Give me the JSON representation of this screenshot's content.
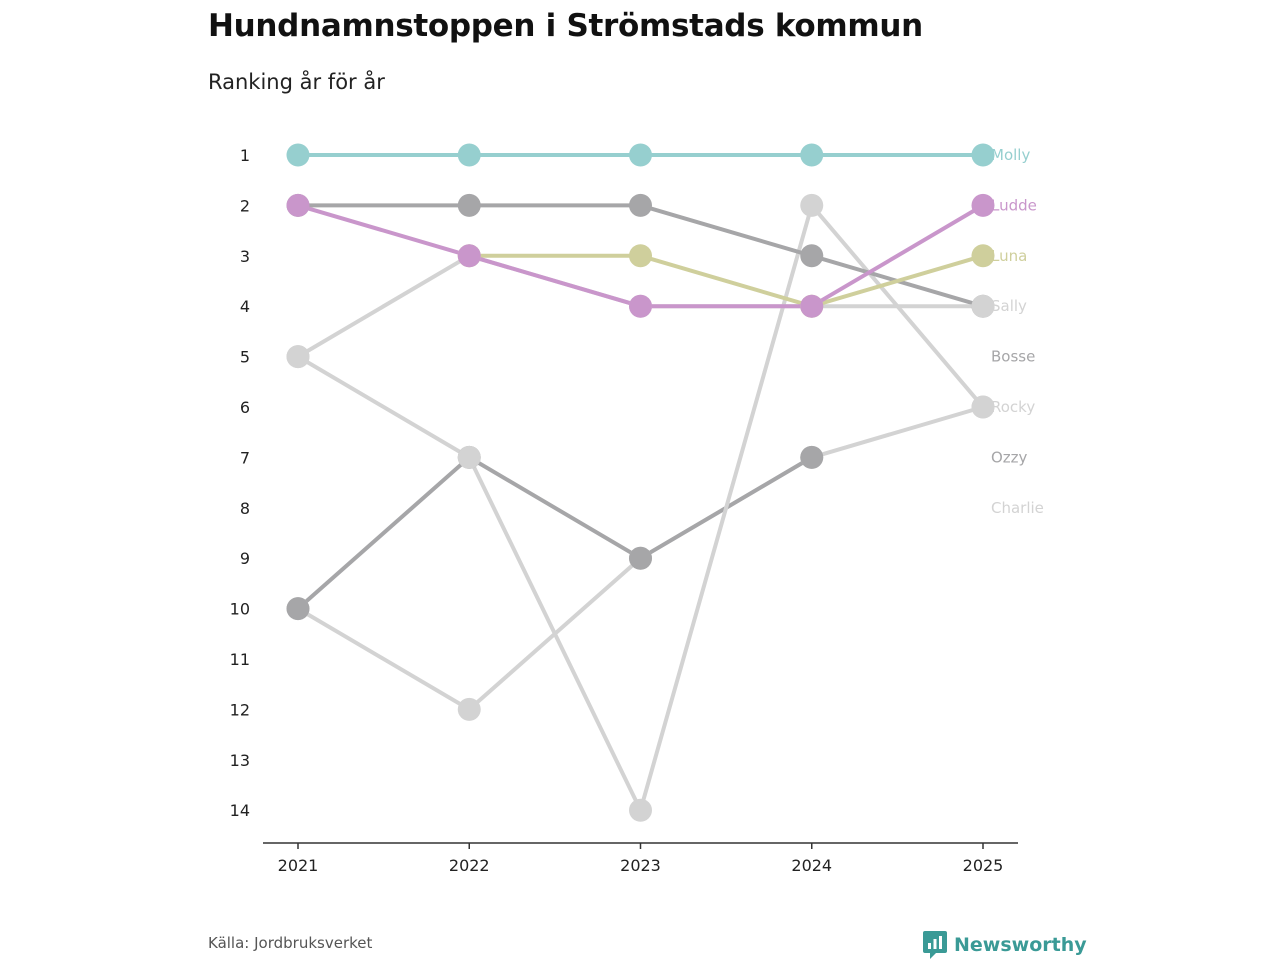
{
  "header": {
    "title": "Hundnamnstoppen i Strömstads kommun",
    "subtitle": "Ranking år för år"
  },
  "footer": {
    "source": "Källa: Jordbruksverket",
    "brand": "Newsworthy"
  },
  "chart_data": {
    "type": "line",
    "subtype": "bump",
    "title": "Hundnamnstoppen i Strömstads kommun",
    "subtitle": "Ranking år för år",
    "x": [
      "2021",
      "2022",
      "2023",
      "2024",
      "2025"
    ],
    "y_ticks": [
      "1",
      "2",
      "3",
      "4",
      "5",
      "6",
      "7",
      "8",
      "9",
      "10",
      "11",
      "12",
      "13",
      "14"
    ],
    "ylim": [
      1,
      14
    ],
    "y_reversed": true,
    "legend": "right-end labels",
    "series": [
      {
        "name": "Charlie",
        "color": "#d3d3d3",
        "ranks": [
          10,
          12,
          9,
          7,
          6
        ]
      },
      {
        "name": "Ozzy",
        "color": "#a6a6a8",
        "ranks": [
          10,
          7,
          9,
          7,
          null
        ]
      },
      {
        "name": "Rocky",
        "color": "#d3d3d3",
        "ranks": [
          5,
          7,
          14,
          2,
          6
        ]
      },
      {
        "name": "Bosse",
        "color": "#a6a6a8",
        "ranks": [
          2,
          2,
          2,
          3,
          4
        ]
      },
      {
        "name": "Sally",
        "color": "#d3d3d3",
        "ranks": [
          5,
          3,
          4,
          4,
          4
        ]
      },
      {
        "name": "Luna",
        "color": "#cfcf9c",
        "ranks": [
          null,
          3,
          3,
          4,
          3
        ]
      },
      {
        "name": "Ludde",
        "color": "#c996cb",
        "ranks": [
          2,
          3,
          4,
          4,
          2
        ]
      },
      {
        "name": "Molly",
        "color": "#96cfcf",
        "ranks": [
          1,
          1,
          1,
          1,
          1
        ]
      }
    ],
    "label_order": [
      "Molly",
      "Ludde",
      "Luna",
      "Sally",
      "Bosse",
      "Rocky",
      "Ozzy",
      "Charlie"
    ],
    "ties_color": "#6d6c73"
  }
}
